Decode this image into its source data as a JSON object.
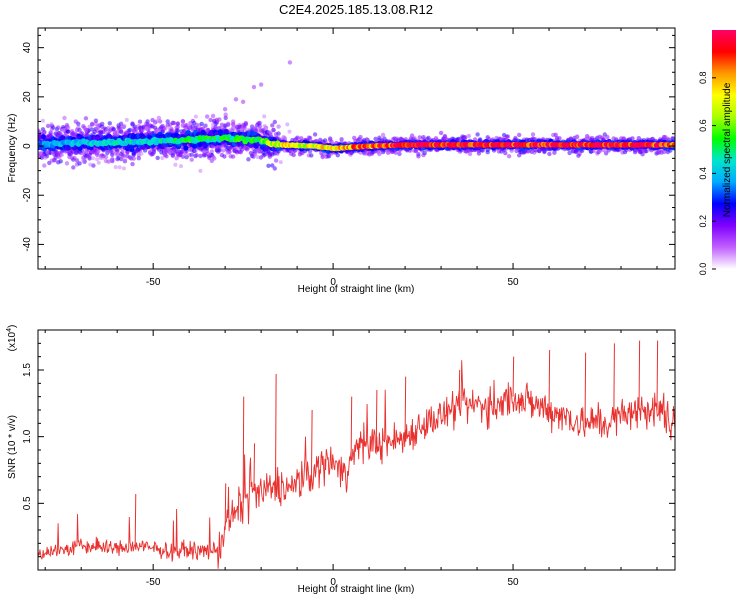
{
  "figure": {
    "title": "C2E4.2025.185.13.08.R12"
  },
  "chart_data": [
    {
      "type": "heatmap",
      "xlabel": "Height of straight line (km)",
      "ylabel": "Frequency (Hz)",
      "xlim": [
        -82,
        95
      ],
      "ylim": [
        -50,
        48
      ],
      "xticks": [
        -50,
        0,
        50
      ],
      "yticks": [
        -40,
        -20,
        0,
        20,
        40
      ],
      "colorbar": {
        "label": "Normalized spectral amplitude",
        "range": [
          0,
          1
        ],
        "ticks": [
          "0.0",
          "0.2",
          "0.4",
          "0.6",
          "0.8"
        ],
        "colors": [
          "#ffffff",
          "#c060ff",
          "#8000ff",
          "#0000ff",
          "#00aaff",
          "#00e5cc",
          "#00ff00",
          "#aaff00",
          "#ffff00",
          "#ff9900",
          "#ff0000",
          "#ff0066"
        ]
      },
      "ridge": [
        {
          "x": -82,
          "y": 0.5,
          "amp": 0.35
        },
        {
          "x": -70,
          "y": 1.5,
          "amp": 0.4
        },
        {
          "x": -60,
          "y": 1.5,
          "amp": 0.45
        },
        {
          "x": -50,
          "y": 2.0,
          "amp": 0.45
        },
        {
          "x": -40,
          "y": 2.5,
          "amp": 0.5
        },
        {
          "x": -30,
          "y": 3.5,
          "amp": 0.5
        },
        {
          "x": -20,
          "y": 2.0,
          "amp": 0.55
        },
        {
          "x": -15,
          "y": 0.5,
          "amp": 0.7
        },
        {
          "x": -5,
          "y": 0.0,
          "amp": 0.7
        },
        {
          "x": 0,
          "y": -1.0,
          "amp": 0.75
        },
        {
          "x": 10,
          "y": 0.0,
          "amp": 0.85
        },
        {
          "x": 20,
          "y": 0.5,
          "amp": 0.95
        },
        {
          "x": 50,
          "y": 0.5,
          "amp": 0.95
        },
        {
          "x": 80,
          "y": 0.5,
          "amp": 0.95
        },
        {
          "x": 95,
          "y": 0.5,
          "amp": 0.9
        }
      ]
    },
    {
      "type": "line",
      "xlabel": "Height of straight line (km)",
      "ylabel": "SNR (10 * v/v)",
      "yscale_label": "(x10",
      "yscale_exp": "4",
      "xlim": [
        -82,
        95
      ],
      "ylim": [
        0,
        1.8
      ],
      "xticks": [
        -50,
        0,
        50
      ],
      "yticks": [
        0.5,
        1.0,
        1.5
      ],
      "ytick_labels": [
        "0.5",
        "1.0",
        "1.5"
      ],
      "color": "#e8302e",
      "series": [
        {
          "x": [
            -82,
            -75,
            -70,
            -65,
            -60,
            -55,
            -50,
            -45,
            -40,
            -35,
            -32,
            -30,
            -28,
            -25,
            -22,
            -20,
            -18,
            -15,
            -12,
            -10,
            -7,
            -5,
            -2,
            0,
            3,
            6,
            10,
            15,
            20,
            25,
            30,
            35,
            40,
            45,
            50,
            55,
            60,
            65,
            70,
            75,
            80,
            85,
            90,
            95
          ],
          "values": [
            0.13,
            0.15,
            0.18,
            0.17,
            0.16,
            0.18,
            0.16,
            0.14,
            0.15,
            0.14,
            0.15,
            0.3,
            0.4,
            0.5,
            0.6,
            0.55,
            0.6,
            0.65,
            0.6,
            0.65,
            0.7,
            0.75,
            0.8,
            0.85,
            0.7,
            0.9,
            0.95,
            0.95,
            1.0,
            1.1,
            1.15,
            1.2,
            1.25,
            1.2,
            1.3,
            1.25,
            1.2,
            1.15,
            1.1,
            1.1,
            1.15,
            1.2,
            1.2,
            1.1
          ],
          "spikes": [
            {
              "x": -55,
              "y": 0.57
            },
            {
              "x": -30,
              "y": 0.65
            },
            {
              "x": -25,
              "y": 1.3
            },
            {
              "x": -22,
              "y": 0.95
            },
            {
              "x": -16,
              "y": 1.47
            },
            {
              "x": -6,
              "y": 1.2
            },
            {
              "x": 5,
              "y": 1.3
            },
            {
              "x": 12,
              "y": 1.35
            },
            {
              "x": 20,
              "y": 1.45
            },
            {
              "x": 35,
              "y": 1.5
            },
            {
              "x": 50,
              "y": 1.6
            },
            {
              "x": 60,
              "y": 1.65
            },
            {
              "x": 70,
              "y": 1.63
            },
            {
              "x": 78,
              "y": 1.7
            },
            {
              "x": 85,
              "y": 1.72
            },
            {
              "x": 90,
              "y": 1.72
            }
          ]
        }
      ]
    }
  ]
}
